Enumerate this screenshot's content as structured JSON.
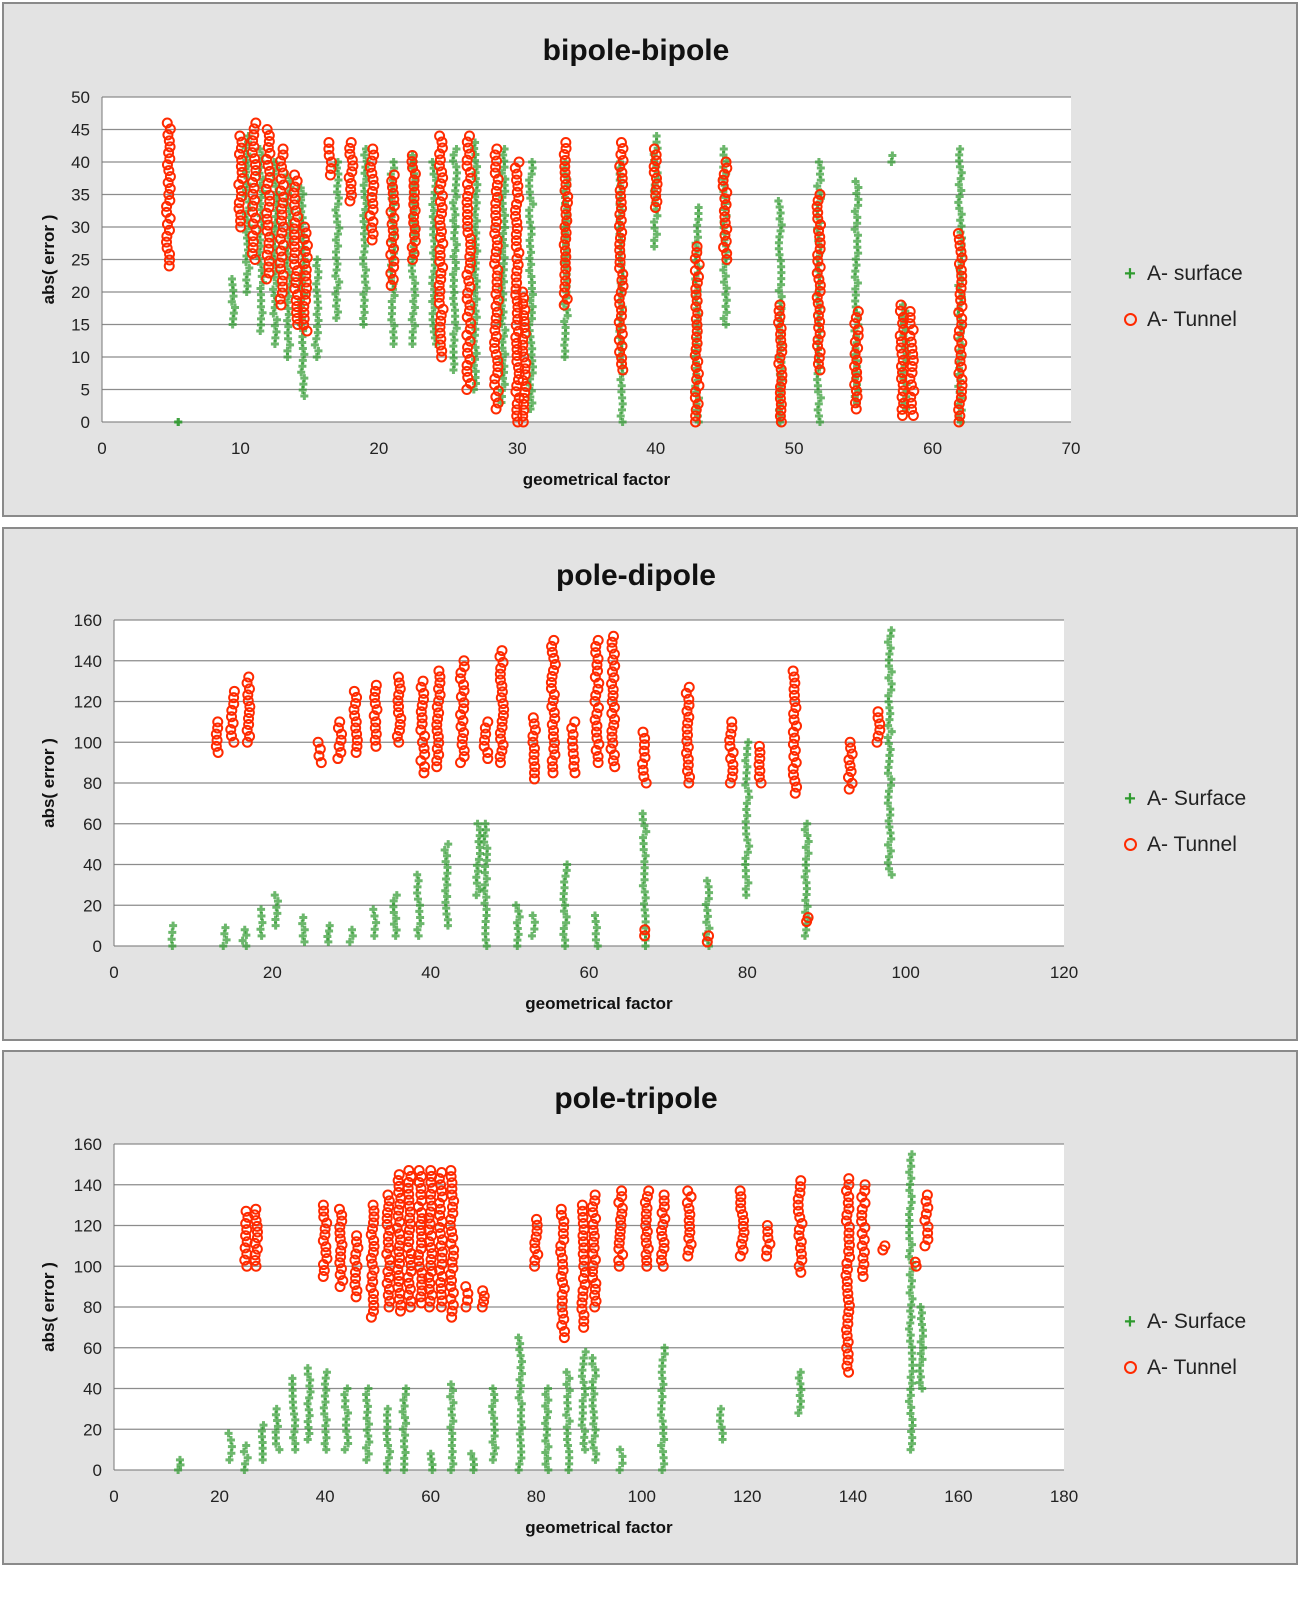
{
  "colors": {
    "surface": "#2e9a2e",
    "tunnel": "#ff2a00",
    "panel_bg": "#e3e3e3",
    "plot_bg": "#ffffff",
    "grid": "#8c8c8c"
  },
  "chart_data": [
    {
      "type": "scatter",
      "title": "bipole-bipole",
      "xlabel": "geometrical factor",
      "ylabel": "abs( error )",
      "xlim": [
        0,
        70
      ],
      "ylim": [
        0,
        50
      ],
      "xticks": [
        0,
        10,
        20,
        30,
        40,
        50,
        60,
        70
      ],
      "yticks": [
        0,
        5,
        10,
        15,
        20,
        25,
        30,
        35,
        40,
        45,
        50
      ],
      "grid": true,
      "legend": "right",
      "series": [
        {
          "name": "A- surface",
          "marker": "plus",
          "columns": [
            [
              5.5,
              0,
              0
            ],
            [
              9.5,
              15,
              22
            ],
            [
              10.5,
              20,
              44
            ],
            [
              11.5,
              14,
              42
            ],
            [
              12.5,
              12,
              40
            ],
            [
              13.5,
              10,
              38
            ],
            [
              14.5,
              4,
              36
            ],
            [
              15.5,
              10,
              25
            ],
            [
              17,
              16,
              40
            ],
            [
              19,
              15,
              42
            ],
            [
              21,
              12,
              40
            ],
            [
              22.5,
              12,
              41
            ],
            [
              24,
              12,
              40
            ],
            [
              25.5,
              8,
              42
            ],
            [
              27,
              5,
              43
            ],
            [
              29,
              3,
              42
            ],
            [
              31,
              2,
              40
            ],
            [
              33.5,
              10,
              40
            ],
            [
              37.5,
              0,
              40
            ],
            [
              40,
              27,
              44
            ],
            [
              43,
              0,
              33
            ],
            [
              45,
              15,
              42
            ],
            [
              49,
              0,
              34
            ],
            [
              51.8,
              0,
              40
            ],
            [
              54.5,
              3,
              37
            ],
            [
              57,
              40,
              41
            ],
            [
              58,
              2,
              18
            ],
            [
              62,
              0,
              42
            ]
          ]
        },
        {
          "name": "A- Tunnel",
          "marker": "circle",
          "columns": [
            [
              4.8,
              24,
              46
            ],
            [
              10,
              30,
              44
            ],
            [
              11,
              25,
              46
            ],
            [
              12,
              22,
              45
            ],
            [
              13,
              18,
              42
            ],
            [
              14,
              15,
              38
            ],
            [
              14.7,
              14,
              30
            ],
            [
              16.5,
              38,
              43
            ],
            [
              18,
              34,
              43
            ],
            [
              19.5,
              28,
              42
            ],
            [
              21,
              21,
              38
            ],
            [
              22.5,
              25,
              41
            ],
            [
              24.5,
              10,
              44
            ],
            [
              26.5,
              5,
              44
            ],
            [
              28.5,
              2,
              42
            ],
            [
              30,
              0,
              40
            ],
            [
              30.5,
              0,
              20
            ],
            [
              33.5,
              18,
              43
            ],
            [
              37.5,
              8,
              43
            ],
            [
              40,
              33,
              42
            ],
            [
              43,
              0,
              27
            ],
            [
              45,
              25,
              40
            ],
            [
              49,
              0,
              18
            ],
            [
              51.8,
              8,
              35
            ],
            [
              54.5,
              2,
              17
            ],
            [
              57.8,
              1,
              18
            ],
            [
              58.5,
              1,
              17
            ],
            [
              62,
              0,
              29
            ]
          ]
        }
      ]
    },
    {
      "type": "scatter",
      "title": "pole-dipole",
      "xlabel": "geometrical factor",
      "ylabel": "abs( error )",
      "xlim": [
        0,
        120
      ],
      "ylim": [
        0,
        160
      ],
      "xticks": [
        0,
        20,
        40,
        60,
        80,
        100,
        120
      ],
      "yticks": [
        0,
        20,
        40,
        60,
        80,
        100,
        120,
        140,
        160
      ],
      "grid": true,
      "legend": "right",
      "series": [
        {
          "name": "A- Surface",
          "marker": "plus",
          "columns": [
            [
              7.5,
              0,
              10
            ],
            [
              14,
              0,
              9
            ],
            [
              16.5,
              0,
              8
            ],
            [
              18.5,
              5,
              18
            ],
            [
              20.5,
              10,
              25
            ],
            [
              24,
              2,
              14
            ],
            [
              27,
              2,
              10
            ],
            [
              30,
              2,
              8
            ],
            [
              33,
              5,
              18
            ],
            [
              35.5,
              5,
              25
            ],
            [
              38.5,
              5,
              35
            ],
            [
              42,
              10,
              50
            ],
            [
              46,
              25,
              60
            ],
            [
              47,
              0,
              60
            ],
            [
              51,
              0,
              20
            ],
            [
              53,
              5,
              15
            ],
            [
              57,
              0,
              40
            ],
            [
              61,
              0,
              15
            ],
            [
              67,
              0,
              65
            ],
            [
              75,
              0,
              32
            ],
            [
              80,
              25,
              100
            ],
            [
              87.5,
              5,
              60
            ],
            [
              98,
              35,
              155
            ]
          ]
        },
        {
          "name": "A- Tunnel",
          "marker": "circle",
          "columns": [
            [
              13,
              95,
              110
            ],
            [
              15,
              100,
              125
            ],
            [
              17,
              100,
              132
            ],
            [
              26,
              90,
              100
            ],
            [
              28.5,
              92,
              110
            ],
            [
              30.5,
              95,
              125
            ],
            [
              33,
              98,
              128
            ],
            [
              36,
              100,
              132
            ],
            [
              39,
              85,
              130
            ],
            [
              41,
              88,
              135
            ],
            [
              44,
              90,
              140
            ],
            [
              47,
              92,
              110
            ],
            [
              49,
              90,
              145
            ],
            [
              53,
              82,
              112
            ],
            [
              55.5,
              85,
              150
            ],
            [
              58,
              85,
              110
            ],
            [
              61,
              90,
              150
            ],
            [
              63,
              88,
              152
            ],
            [
              67,
              80,
              105
            ],
            [
              72.5,
              80,
              127
            ],
            [
              78,
              80,
              110
            ],
            [
              81.5,
              80,
              98
            ],
            [
              86,
              75,
              135
            ],
            [
              93,
              77,
              100
            ],
            [
              96.5,
              100,
              115
            ],
            [
              87.5,
              12,
              14
            ],
            [
              67,
              5,
              8
            ],
            [
              75,
              2,
              5
            ]
          ]
        }
      ]
    },
    {
      "type": "scatter",
      "title": "pole-tripole",
      "xlabel": "geometrical factor",
      "ylabel": "abs( error )",
      "xlim": [
        0,
        180
      ],
      "ylim": [
        0,
        160
      ],
      "xticks": [
        0,
        20,
        40,
        60,
        80,
        100,
        120,
        140,
        160,
        180
      ],
      "yticks": [
        0,
        20,
        40,
        60,
        80,
        100,
        120,
        140,
        160
      ],
      "grid": true,
      "legend": "right",
      "series": [
        {
          "name": "A- Surface",
          "marker": "plus",
          "columns": [
            [
              12.5,
              0,
              5
            ],
            [
              22,
              5,
              18
            ],
            [
              25,
              0,
              12
            ],
            [
              28,
              5,
              22
            ],
            [
              31,
              10,
              30
            ],
            [
              34,
              10,
              45
            ],
            [
              37,
              15,
              50
            ],
            [
              40,
              10,
              48
            ],
            [
              44,
              10,
              40
            ],
            [
              48,
              5,
              40
            ],
            [
              52,
              0,
              30
            ],
            [
              55,
              0,
              40
            ],
            [
              60,
              0,
              8
            ],
            [
              64,
              0,
              42
            ],
            [
              68,
              0,
              8
            ],
            [
              72,
              5,
              40
            ],
            [
              77,
              0,
              65
            ],
            [
              82,
              0,
              40
            ],
            [
              86,
              0,
              48
            ],
            [
              89,
              10,
              58
            ],
            [
              91,
              5,
              55
            ],
            [
              96,
              0,
              10
            ],
            [
              104,
              0,
              60
            ],
            [
              115,
              15,
              30
            ],
            [
              130,
              28,
              48
            ],
            [
              151,
              10,
              155
            ],
            [
              153,
              40,
              80
            ]
          ]
        },
        {
          "name": "A- Tunnel",
          "marker": "circle",
          "columns": [
            [
              25,
              100,
              127
            ],
            [
              27,
              100,
              128
            ],
            [
              40,
              95,
              130
            ],
            [
              43,
              90,
              128
            ],
            [
              46,
              85,
              115
            ],
            [
              49,
              75,
              130
            ],
            [
              52,
              80,
              135
            ],
            [
              54,
              78,
              145
            ],
            [
              56,
              80,
              147
            ],
            [
              58,
              82,
              147
            ],
            [
              60,
              80,
              147
            ],
            [
              62,
              80,
              146
            ],
            [
              64,
              75,
              147
            ],
            [
              67,
              80,
              90
            ],
            [
              70,
              80,
              88
            ],
            [
              80,
              100,
              123
            ],
            [
              85,
              65,
              128
            ],
            [
              89,
              70,
              130
            ],
            [
              91,
              80,
              135
            ],
            [
              96,
              100,
              137
            ],
            [
              101,
              100,
              137
            ],
            [
              104,
              100,
              135
            ],
            [
              109,
              105,
              137
            ],
            [
              119,
              105,
              137
            ],
            [
              124,
              105,
              120
            ],
            [
              130,
              97,
              142
            ],
            [
              139,
              48,
              143
            ],
            [
              142,
              95,
              140
            ],
            [
              146,
              108,
              110
            ],
            [
              152,
              100,
              102
            ],
            [
              154,
              110,
              135
            ]
          ]
        }
      ]
    }
  ]
}
